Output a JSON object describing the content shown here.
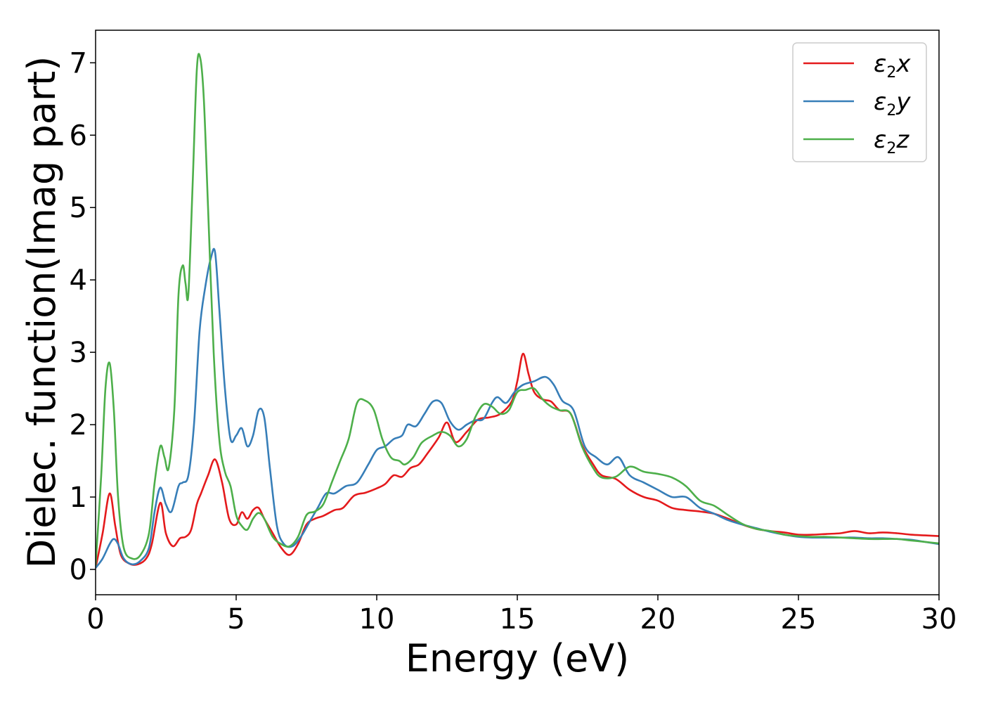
{
  "chart_data": {
    "type": "line",
    "xlabel": "Energy (eV)",
    "ylabel": "Dielec. function(Imag part)",
    "xlim": [
      0,
      30
    ],
    "ylim": [
      -0.35,
      7.45
    ],
    "xticks": [
      0,
      5,
      10,
      15,
      20,
      25,
      30
    ],
    "yticks": [
      0,
      1,
      2,
      3,
      4,
      5,
      6,
      7
    ],
    "grid": false,
    "legend_position": "top-right",
    "series": [
      {
        "name": "ε2x",
        "symbol": "ε",
        "sub": "2",
        "suffix": "x",
        "color": "#e41a1c",
        "x": [
          0,
          0.25,
          0.5,
          0.7,
          0.9,
          1.2,
          1.5,
          1.8,
          2.0,
          2.3,
          2.5,
          2.75,
          3.0,
          3.2,
          3.4,
          3.6,
          3.75,
          4.0,
          4.25,
          4.5,
          4.75,
          5.0,
          5.2,
          5.4,
          5.6,
          5.8,
          6.0,
          6.3,
          6.6,
          6.9,
          7.2,
          7.5,
          7.8,
          8.1,
          8.5,
          8.8,
          9.2,
          9.6,
          10.0,
          10.3,
          10.6,
          10.9,
          11.2,
          11.5,
          11.8,
          12.2,
          12.5,
          12.8,
          13.2,
          13.6,
          14.0,
          14.4,
          14.8,
          15.0,
          15.2,
          15.4,
          15.6,
          15.9,
          16.2,
          16.5,
          16.9,
          17.3,
          17.7,
          18.0,
          18.5,
          19.0,
          19.5,
          20.0,
          20.5,
          21.0,
          21.5,
          22.0,
          22.5,
          23.0,
          23.5,
          24.0,
          24.5,
          25.0,
          25.5,
          26.0,
          26.5,
          27.0,
          27.5,
          28.0,
          28.5,
          29.0,
          29.5,
          30.0
        ],
        "y": [
          0.02,
          0.5,
          1.05,
          0.6,
          0.2,
          0.08,
          0.07,
          0.15,
          0.35,
          0.92,
          0.5,
          0.32,
          0.43,
          0.45,
          0.55,
          0.9,
          1.05,
          1.3,
          1.52,
          1.2,
          0.7,
          0.62,
          0.79,
          0.7,
          0.82,
          0.85,
          0.7,
          0.5,
          0.3,
          0.2,
          0.35,
          0.62,
          0.7,
          0.74,
          0.82,
          0.85,
          1.02,
          1.06,
          1.12,
          1.18,
          1.3,
          1.28,
          1.4,
          1.45,
          1.6,
          1.82,
          2.03,
          1.76,
          1.9,
          2.07,
          2.1,
          2.15,
          2.32,
          2.6,
          2.98,
          2.7,
          2.45,
          2.35,
          2.32,
          2.2,
          2.15,
          1.72,
          1.45,
          1.3,
          1.25,
          1.1,
          1.0,
          0.95,
          0.85,
          0.82,
          0.8,
          0.77,
          0.7,
          0.62,
          0.56,
          0.53,
          0.51,
          0.48,
          0.48,
          0.49,
          0.5,
          0.53,
          0.5,
          0.51,
          0.5,
          0.48,
          0.47,
          0.46
        ]
      },
      {
        "name": "ε2y",
        "symbol": "ε",
        "sub": "2",
        "suffix": "y",
        "color": "#377eb8",
        "x": [
          0,
          0.25,
          0.5,
          0.65,
          0.8,
          1.0,
          1.3,
          1.6,
          1.9,
          2.1,
          2.3,
          2.5,
          2.7,
          2.95,
          3.1,
          3.3,
          3.5,
          3.7,
          3.9,
          4.1,
          4.25,
          4.4,
          4.6,
          4.8,
          5.0,
          5.2,
          5.4,
          5.6,
          5.8,
          6.0,
          6.2,
          6.45,
          6.7,
          7.0,
          7.3,
          7.6,
          7.9,
          8.2,
          8.5,
          8.9,
          9.3,
          9.7,
          10.0,
          10.3,
          10.6,
          10.9,
          11.1,
          11.4,
          11.7,
          12.0,
          12.3,
          12.6,
          12.9,
          13.2,
          13.5,
          13.8,
          14.1,
          14.3,
          14.6,
          14.9,
          15.2,
          15.6,
          16.0,
          16.3,
          16.6,
          17.0,
          17.4,
          17.8,
          18.2,
          18.6,
          19.0,
          19.5,
          20.0,
          20.5,
          21.0,
          21.5,
          22.0,
          22.5,
          23.0,
          23.5,
          24.0,
          24.5,
          25.0,
          25.5,
          26.0,
          26.5,
          27.0,
          27.5,
          28.0,
          28.5,
          29.0,
          29.5,
          30.0
        ],
        "y": [
          0.02,
          0.15,
          0.35,
          0.42,
          0.35,
          0.15,
          0.07,
          0.12,
          0.3,
          0.8,
          1.13,
          0.9,
          0.8,
          1.15,
          1.2,
          1.3,
          2.0,
          3.3,
          3.9,
          4.3,
          4.38,
          3.6,
          2.5,
          1.8,
          1.85,
          1.95,
          1.7,
          1.85,
          2.2,
          2.1,
          1.4,
          0.6,
          0.35,
          0.32,
          0.45,
          0.65,
          0.85,
          1.05,
          1.05,
          1.15,
          1.2,
          1.45,
          1.65,
          1.7,
          1.8,
          1.85,
          2.0,
          1.98,
          2.15,
          2.32,
          2.3,
          2.05,
          1.93,
          2.0,
          2.06,
          2.08,
          2.3,
          2.38,
          2.3,
          2.45,
          2.55,
          2.6,
          2.66,
          2.55,
          2.33,
          2.2,
          1.7,
          1.55,
          1.45,
          1.55,
          1.3,
          1.2,
          1.1,
          1.0,
          1.0,
          0.85,
          0.77,
          0.68,
          0.62,
          0.57,
          0.52,
          0.48,
          0.45,
          0.44,
          0.44,
          0.44,
          0.44,
          0.43,
          0.43,
          0.42,
          0.41,
          0.38,
          0.35
        ]
      },
      {
        "name": "ε2z",
        "symbol": "ε",
        "sub": "2",
        "suffix": "z",
        "color": "#4daf4a",
        "x": [
          0,
          0.2,
          0.35,
          0.5,
          0.65,
          0.8,
          1.0,
          1.3,
          1.6,
          1.9,
          2.1,
          2.3,
          2.45,
          2.6,
          2.8,
          2.95,
          3.1,
          3.2,
          3.3,
          3.45,
          3.6,
          3.72,
          3.85,
          4.0,
          4.2,
          4.4,
          4.6,
          4.8,
          5.0,
          5.2,
          5.4,
          5.6,
          5.8,
          6.0,
          6.3,
          6.6,
          6.9,
          7.2,
          7.5,
          7.8,
          8.1,
          8.4,
          8.7,
          9.0,
          9.3,
          9.6,
          9.9,
          10.2,
          10.5,
          10.8,
          11.0,
          11.3,
          11.6,
          12.0,
          12.3,
          12.6,
          12.9,
          13.2,
          13.5,
          13.8,
          14.1,
          14.4,
          14.7,
          15.0,
          15.3,
          15.6,
          15.9,
          16.2,
          16.5,
          16.9,
          17.3,
          17.7,
          18.0,
          18.5,
          19.0,
          19.5,
          20.0,
          20.5,
          21.0,
          21.5,
          22.0,
          22.5,
          23.0,
          23.5,
          24.0,
          24.5,
          25.0,
          25.5,
          26.0,
          26.5,
          27.0,
          27.5,
          28.0,
          28.5,
          29.0,
          29.5,
          30.0
        ],
        "y": [
          0.05,
          1.3,
          2.5,
          2.85,
          2.2,
          1.0,
          0.3,
          0.15,
          0.2,
          0.5,
          1.2,
          1.7,
          1.55,
          1.4,
          2.2,
          3.8,
          4.2,
          3.95,
          3.8,
          5.3,
          6.9,
          7.07,
          6.5,
          5.0,
          3.0,
          1.8,
          1.35,
          1.15,
          0.75,
          0.6,
          0.55,
          0.7,
          0.78,
          0.7,
          0.45,
          0.35,
          0.32,
          0.45,
          0.75,
          0.8,
          0.9,
          1.2,
          1.5,
          1.8,
          2.3,
          2.33,
          2.2,
          1.8,
          1.55,
          1.5,
          1.45,
          1.55,
          1.75,
          1.85,
          1.9,
          1.85,
          1.7,
          1.8,
          2.1,
          2.28,
          2.25,
          2.15,
          2.2,
          2.45,
          2.48,
          2.5,
          2.35,
          2.25,
          2.2,
          2.15,
          1.7,
          1.4,
          1.27,
          1.28,
          1.42,
          1.35,
          1.32,
          1.27,
          1.15,
          0.95,
          0.88,
          0.75,
          0.63,
          0.56,
          0.53,
          0.48,
          0.46,
          0.45,
          0.45,
          0.44,
          0.43,
          0.42,
          0.42,
          0.42,
          0.4,
          0.38,
          0.36
        ]
      }
    ]
  }
}
